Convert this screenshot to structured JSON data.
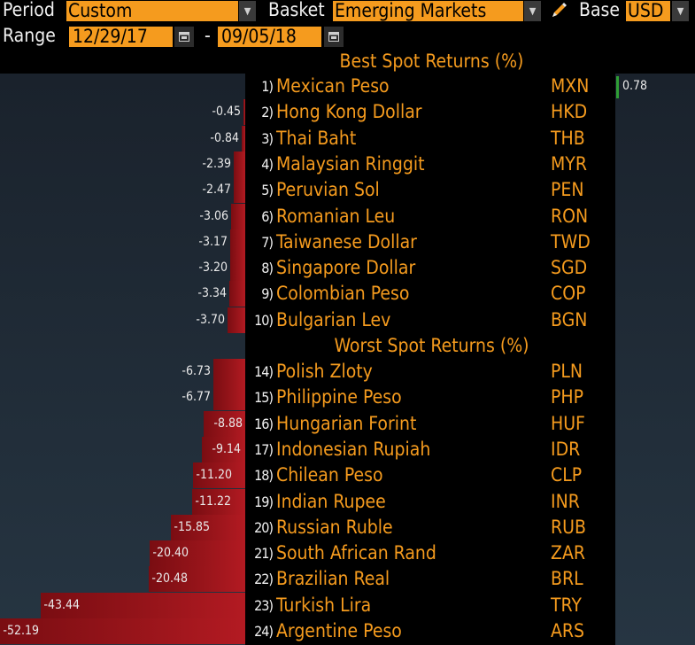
{
  "toolbar": {
    "period_label": "Period",
    "period_value": "Custom",
    "basket_label": "Basket",
    "basket_value": "Emerging Markets",
    "base_label": "Base",
    "base_value": "USD"
  },
  "range": {
    "label": "Range",
    "start": "12/29/17",
    "separator": "-",
    "end": "09/05/18"
  },
  "best": {
    "header": "Best Spot Returns (%)",
    "rows": [
      {
        "rank": "1)",
        "name": "Mexican Peso",
        "code": "MXN",
        "value": "0.78",
        "num": 0.78
      },
      {
        "rank": "2)",
        "name": "Hong Kong Dollar",
        "code": "HKD",
        "value": "-0.45",
        "num": -0.45
      },
      {
        "rank": "3)",
        "name": "Thai Baht",
        "code": "THB",
        "value": "-0.84",
        "num": -0.84
      },
      {
        "rank": "4)",
        "name": "Malaysian Ringgit",
        "code": "MYR",
        "value": "-2.39",
        "num": -2.39
      },
      {
        "rank": "5)",
        "name": "Peruvian Sol",
        "code": "PEN",
        "value": "-2.47",
        "num": -2.47
      },
      {
        "rank": "6)",
        "name": "Romanian Leu",
        "code": "RON",
        "value": "-3.06",
        "num": -3.06
      },
      {
        "rank": "7)",
        "name": "Taiwanese Dollar",
        "code": "TWD",
        "value": "-3.17",
        "num": -3.17
      },
      {
        "rank": "8)",
        "name": "Singapore Dollar",
        "code": "SGD",
        "value": "-3.20",
        "num": -3.2
      },
      {
        "rank": "9)",
        "name": "Colombian Peso",
        "code": "COP",
        "value": "-3.34",
        "num": -3.34
      },
      {
        "rank": "10)",
        "name": "Bulgarian Lev",
        "code": "BGN",
        "value": "-3.70",
        "num": -3.7
      }
    ]
  },
  "worst": {
    "header": "Worst Spot Returns (%)",
    "rows": [
      {
        "rank": "14)",
        "name": "Polish Zloty",
        "code": "PLN",
        "value": "-6.73",
        "num": -6.73
      },
      {
        "rank": "15)",
        "name": "Philippine Peso",
        "code": "PHP",
        "value": "-6.77",
        "num": -6.77
      },
      {
        "rank": "16)",
        "name": "Hungarian Forint",
        "code": "HUF",
        "value": "-8.88",
        "num": -8.88
      },
      {
        "rank": "17)",
        "name": "Indonesian Rupiah",
        "code": "IDR",
        "value": "-9.14",
        "num": -9.14
      },
      {
        "rank": "18)",
        "name": "Chilean Peso",
        "code": "CLP",
        "value": "-11.20",
        "num": -11.2
      },
      {
        "rank": "19)",
        "name": "Indian Rupee",
        "code": "INR",
        "value": "-11.22",
        "num": -11.22
      },
      {
        "rank": "20)",
        "name": "Russian Ruble",
        "code": "RUB",
        "value": "-15.85",
        "num": -15.85
      },
      {
        "rank": "21)",
        "name": "South African Rand",
        "code": "ZAR",
        "value": "-20.40",
        "num": -20.4
      },
      {
        "rank": "22)",
        "name": "Brazilian Real",
        "code": "BRL",
        "value": "-20.48",
        "num": -20.48
      },
      {
        "rank": "23)",
        "name": "Turkish Lira",
        "code": "TRY",
        "value": "-43.44",
        "num": -43.44
      },
      {
        "rank": "24)",
        "name": "Argentine Peso",
        "code": "ARS",
        "value": "-52.19",
        "num": -52.19
      }
    ]
  },
  "colors": {
    "accent": "#f59b1e",
    "negative_bar": "#9a151b",
    "positive_bar": "#2f9e35",
    "panel": "#1f2a35"
  },
  "icons": {
    "dropdown": "chevron-down-icon",
    "calendar": "calendar-icon",
    "edit": "pencil-icon"
  }
}
